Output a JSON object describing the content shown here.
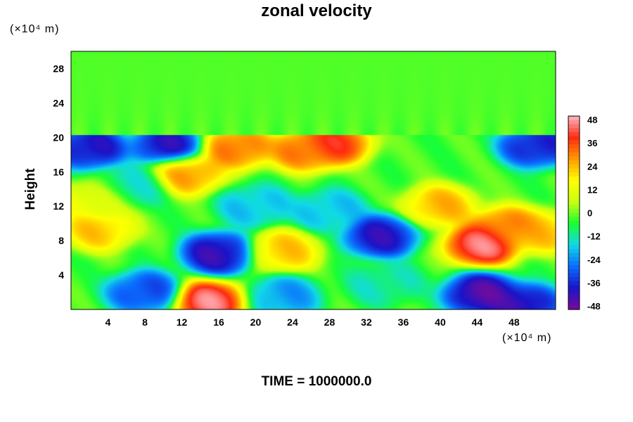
{
  "chart_data": {
    "type": "heatmap",
    "title": "zonal velocity",
    "ylabel": "Height",
    "xlabel": "",
    "y_unit_text": "(×10⁴ m)",
    "x_unit_text": "(×10⁴ m)",
    "xlim": [
      0,
      52.5
    ],
    "ylim": [
      0,
      30
    ],
    "x_ticks": [
      4,
      8,
      12,
      16,
      20,
      24,
      28,
      32,
      36,
      40,
      44,
      48
    ],
    "y_ticks": [
      4,
      8,
      12,
      16,
      20,
      24,
      28
    ],
    "colorbar": {
      "min": -48,
      "max": 48,
      "ticks": [
        48,
        36,
        24,
        12,
        0,
        -12,
        -24,
        -36,
        -48
      ]
    },
    "colormap": [
      "#7a0a9a",
      "#1a14c8",
      "#0a6cff",
      "#10d8e8",
      "#1aff32",
      "#c8ff10",
      "#ffff00",
      "#ff9a00",
      "#ff2a10",
      "#ffb8c4"
    ],
    "background_value": -3,
    "features": [
      {
        "x": 15,
        "y": 0.9,
        "value": 48
      },
      {
        "x": 44.5,
        "y": 7.5,
        "value": 48
      },
      {
        "x": 47,
        "y": 9.5,
        "value": 34
      },
      {
        "x": 51,
        "y": 9,
        "value": 24
      },
      {
        "x": 16,
        "y": 6.5,
        "value": -44
      },
      {
        "x": 33.5,
        "y": 8.5,
        "value": -42
      },
      {
        "x": 23,
        "y": 6.8,
        "value": 24
      },
      {
        "x": 3,
        "y": 9.3,
        "value": 24
      },
      {
        "x": 44.5,
        "y": 1.8,
        "value": -48
      },
      {
        "x": 49,
        "y": 0.5,
        "value": -44
      },
      {
        "x": 8,
        "y": 2,
        "value": -34
      },
      {
        "x": 2,
        "y": 18.8,
        "value": -42
      },
      {
        "x": 10.5,
        "y": 19,
        "value": -42
      },
      {
        "x": 50.5,
        "y": 19,
        "value": -40
      },
      {
        "x": 18,
        "y": 18.8,
        "value": 34
      },
      {
        "x": 25.5,
        "y": 18.5,
        "value": 34
      },
      {
        "x": 28.5,
        "y": 19.3,
        "value": 40
      },
      {
        "x": 12.5,
        "y": 15.8,
        "value": 30
      },
      {
        "x": 28,
        "y": 11.5,
        "value": -20
      },
      {
        "x": 7,
        "y": 14.5,
        "value": -14
      },
      {
        "x": 40,
        "y": 12,
        "value": 26
      },
      {
        "x": 2,
        "y": 12.5,
        "value": 14
      },
      {
        "x": 23,
        "y": 1.5,
        "value": -24
      },
      {
        "x": 34,
        "y": 3,
        "value": -14
      },
      {
        "x": 20,
        "y": 12,
        "value": -20
      }
    ],
    "time_label": "TIME = 1000000.0"
  }
}
